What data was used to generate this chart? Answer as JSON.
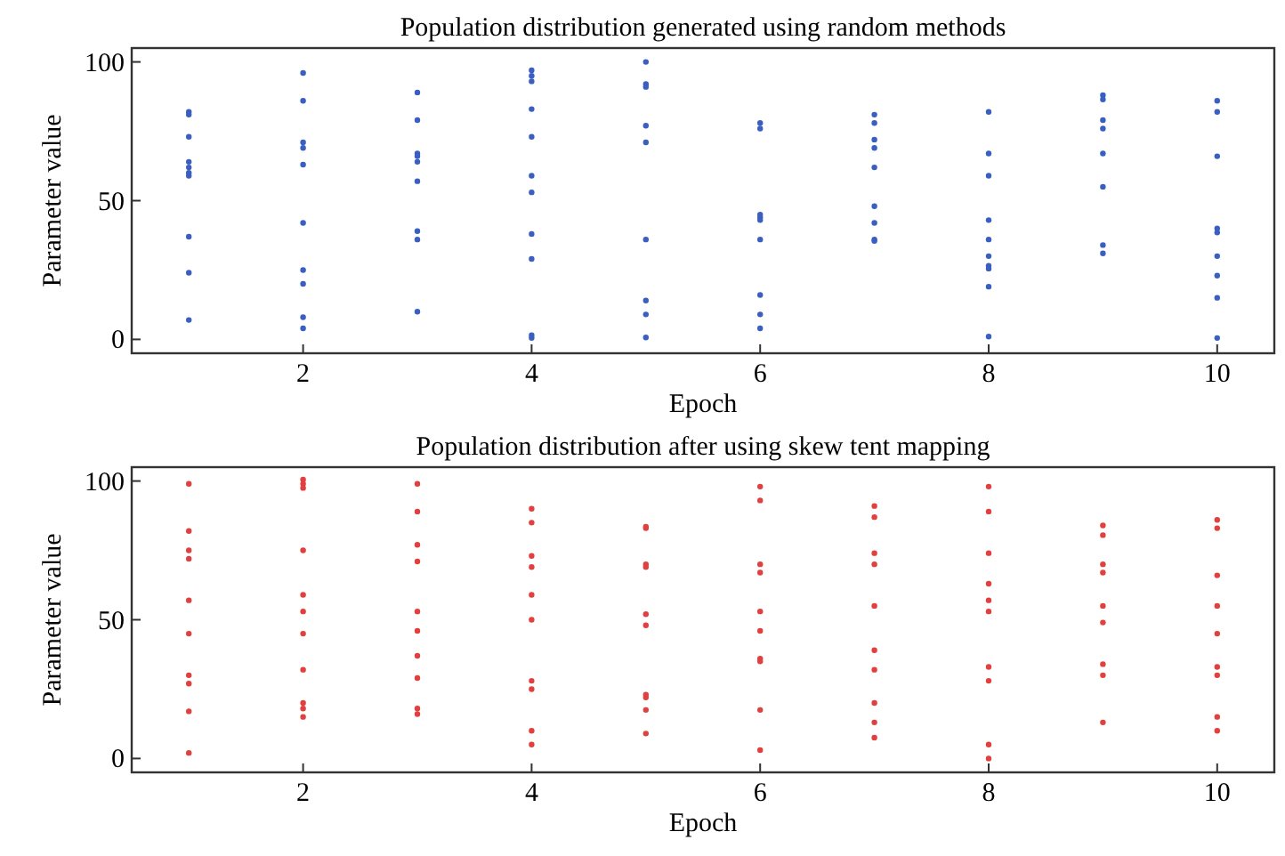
{
  "chart_data": [
    {
      "type": "scatter",
      "title": "Population distribution generated using random methods",
      "xlabel": "Epoch",
      "ylabel": "Parameter value",
      "xlim": [
        0.5,
        10.5
      ],
      "ylim": [
        -5,
        105
      ],
      "xticks": [
        2,
        4,
        6,
        8,
        10
      ],
      "yticks": [
        0,
        50,
        100
      ],
      "marker": "circle",
      "series": [
        {
          "color": "#3b5fc0",
          "x": [
            1,
            1,
            1,
            1,
            1,
            1,
            1,
            1,
            1,
            1,
            2,
            2,
            2,
            2,
            2,
            2,
            2,
            2,
            2,
            2,
            3,
            3,
            3,
            3,
            3,
            3,
            3,
            3,
            3,
            4,
            4,
            4,
            4,
            4,
            4,
            4,
            4,
            4,
            4,
            4,
            5,
            5,
            5,
            5,
            5,
            5,
            5,
            5,
            5,
            6,
            6,
            6,
            6,
            6,
            6,
            6,
            6,
            6,
            7,
            7,
            7,
            7,
            7,
            7,
            7,
            7,
            7,
            8,
            8,
            8,
            8,
            8,
            8,
            8,
            8,
            8,
            8,
            9,
            9,
            9,
            9,
            9,
            9,
            9,
            9,
            10,
            10,
            10,
            10,
            10,
            10,
            10,
            10,
            10
          ],
          "values": [
            82,
            81,
            73,
            64,
            62,
            60,
            59,
            37,
            24,
            7,
            96,
            86,
            71,
            69,
            63,
            42,
            25,
            20,
            8,
            4,
            89,
            79,
            67,
            66,
            64,
            57,
            39,
            36,
            10,
            97,
            95,
            93,
            83,
            73,
            59,
            53,
            38,
            29,
            1.5,
            0.5,
            100,
            92,
            91,
            77,
            71,
            36,
            14,
            9,
            0.7,
            78,
            76,
            45,
            44,
            43,
            36,
            16,
            9,
            4,
            81,
            78,
            72,
            69,
            62,
            48,
            42,
            36,
            35.5,
            82,
            67,
            59,
            43,
            36,
            30,
            26.5,
            25.5,
            19,
            1,
            88,
            86.5,
            79,
            76,
            67,
            55,
            34,
            31,
            86,
            82,
            66,
            40,
            38.5,
            30,
            23,
            15,
            0.5
          ]
        }
      ]
    },
    {
      "type": "scatter",
      "title": "Population distribution after using skew tent mapping",
      "xlabel": "Epoch",
      "ylabel": "Parameter value",
      "xlim": [
        0.5,
        10.5
      ],
      "ylim": [
        -5,
        105
      ],
      "xticks": [
        2,
        4,
        6,
        8,
        10
      ],
      "yticks": [
        0,
        50,
        100
      ],
      "marker": "circle",
      "series": [
        {
          "color": "#e0403f",
          "x": [
            1,
            1,
            1,
            1,
            1,
            1,
            1,
            1,
            1,
            1,
            2,
            2,
            2,
            2,
            2,
            2,
            2,
            2,
            2,
            2,
            2,
            3,
            3,
            3,
            3,
            3,
            3,
            3,
            3,
            3,
            3,
            4,
            4,
            4,
            4,
            4,
            4,
            4,
            4,
            4,
            4,
            5,
            5,
            5,
            5,
            5,
            5,
            5,
            5,
            5,
            5,
            6,
            6,
            6,
            6,
            6,
            6,
            6,
            6,
            6,
            6,
            7,
            7,
            7,
            7,
            7,
            7,
            7,
            7,
            7,
            7,
            8,
            8,
            8,
            8,
            8,
            8,
            8,
            8,
            8,
            8,
            9,
            9,
            9,
            9,
            9,
            9,
            9,
            9,
            9,
            10,
            10,
            10,
            10,
            10,
            10,
            10,
            10,
            10
          ],
          "values": [
            99,
            82,
            75,
            72,
            57,
            45,
            30,
            27,
            17,
            2,
            100.5,
            99,
            97.5,
            75,
            59,
            53,
            45,
            32,
            20,
            18,
            15,
            99,
            89,
            77,
            71,
            53,
            46,
            37,
            29,
            18,
            16,
            90,
            85,
            73,
            69,
            59,
            50,
            28,
            25,
            10,
            5,
            83.5,
            83,
            70,
            69,
            52,
            48,
            23,
            22,
            17.5,
            9,
            98,
            93,
            70,
            67,
            53,
            46,
            36,
            35,
            17.5,
            3,
            91,
            87,
            74,
            70,
            55,
            39,
            32,
            20,
            13,
            7.5,
            98,
            89,
            74,
            63,
            57,
            53,
            33,
            28,
            5,
            0,
            84,
            80.5,
            70,
            67,
            55,
            49,
            34,
            30,
            13,
            86,
            83,
            66,
            55,
            45,
            33,
            30,
            15,
            10
          ]
        }
      ]
    }
  ]
}
